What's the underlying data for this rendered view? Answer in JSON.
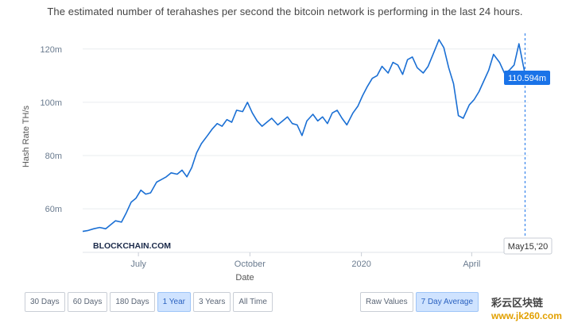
{
  "subtitle": "The estimated number of terahashes per second the bitcoin network is performing in the last 24 hours.",
  "watermark": {
    "brand": "BLOCKCHAIN.COM",
    "overlay": "彩云区块链",
    "site": "www.jk260.com"
  },
  "tooltip": {
    "value": "110.594m",
    "date": "May15,'20"
  },
  "range_buttons": [
    {
      "label": "30 Days",
      "active": false
    },
    {
      "label": "60 Days",
      "active": false
    },
    {
      "label": "180 Days",
      "active": false
    },
    {
      "label": "1 Year",
      "active": true
    },
    {
      "label": "3 Years",
      "active": false
    },
    {
      "label": "All Time",
      "active": false
    }
  ],
  "mode_buttons": [
    {
      "label": "Raw Values",
      "active": false
    },
    {
      "label": "7 Day Average",
      "active": true
    }
  ],
  "colors": {
    "line": "#1a6fd4",
    "grid": "#e9ecef",
    "tooltip_bg": "#1a73e8"
  },
  "chart_data": {
    "type": "line",
    "xlabel": "Date",
    "ylabel": "Hash Rate TH/s",
    "ylim": [
      49,
      125
    ],
    "yticks": [
      60,
      80,
      100,
      120
    ],
    "ytick_labels": [
      "60m",
      "80m",
      "100m",
      "120m"
    ],
    "xlim": [
      "2019-05-16",
      "2020-05-18"
    ],
    "xticks": [
      "2019-07-01",
      "2019-10-01",
      "2020-01-01",
      "2020-04-01"
    ],
    "xtick_labels": [
      "July",
      "October",
      "2020",
      "April"
    ],
    "grid": true,
    "series": [
      {
        "x": [
          "2019-05-16",
          "2019-05-20",
          "2019-05-25",
          "2019-05-30",
          "2019-06-04",
          "2019-06-08",
          "2019-06-12",
          "2019-06-17",
          "2019-06-21",
          "2019-06-25",
          "2019-06-29",
          "2019-07-03",
          "2019-07-07",
          "2019-07-11",
          "2019-07-16",
          "2019-07-20",
          "2019-07-24",
          "2019-07-28",
          "2019-08-02",
          "2019-08-06",
          "2019-08-10",
          "2019-08-14",
          "2019-08-18",
          "2019-08-22",
          "2019-08-27",
          "2019-08-31",
          "2019-09-04",
          "2019-09-08",
          "2019-09-12",
          "2019-09-16",
          "2019-09-20",
          "2019-09-25",
          "2019-09-29",
          "2019-10-03",
          "2019-10-07",
          "2019-10-11",
          "2019-10-15",
          "2019-10-19",
          "2019-10-24",
          "2019-10-28",
          "2019-11-01",
          "2019-11-05",
          "2019-11-09",
          "2019-11-13",
          "2019-11-17",
          "2019-11-22",
          "2019-11-26",
          "2019-11-30",
          "2019-12-04",
          "2019-12-08",
          "2019-12-12",
          "2019-12-16",
          "2019-12-20",
          "2019-12-25",
          "2019-12-29",
          "2020-01-02",
          "2020-01-06",
          "2020-01-10",
          "2020-01-14",
          "2020-01-18",
          "2020-01-23",
          "2020-01-27",
          "2020-01-31",
          "2020-02-04",
          "2020-02-08",
          "2020-02-12",
          "2020-02-16",
          "2020-02-21",
          "2020-02-25",
          "2020-03-01",
          "2020-03-05",
          "2020-03-09",
          "2020-03-13",
          "2020-03-17",
          "2020-03-21",
          "2020-03-25",
          "2020-03-30",
          "2020-04-03",
          "2020-04-07",
          "2020-04-11",
          "2020-04-15",
          "2020-04-19",
          "2020-04-24",
          "2020-04-28",
          "2020-05-02",
          "2020-05-06",
          "2020-05-10",
          "2020-05-15"
        ],
        "values": [
          51.5,
          51.8,
          52.5,
          53.0,
          52.5,
          54.0,
          55.5,
          55.0,
          58.5,
          62.5,
          64.0,
          67.0,
          65.5,
          66.0,
          70.0,
          71.0,
          72.0,
          73.5,
          73.0,
          74.5,
          72.0,
          75.5,
          81.0,
          84.5,
          87.5,
          90.0,
          92.0,
          91.0,
          93.5,
          92.5,
          97.0,
          96.5,
          100.0,
          96.0,
          93.0,
          91.0,
          92.5,
          94.0,
          91.5,
          93.0,
          94.5,
          92.0,
          91.5,
          87.5,
          93.0,
          95.5,
          93.0,
          94.5,
          92.0,
          96.0,
          97.0,
          94.0,
          91.5,
          96.0,
          98.5,
          102.5,
          106.0,
          109.0,
          110.0,
          113.5,
          111.0,
          115.0,
          114.0,
          110.5,
          116.0,
          117.0,
          113.0,
          111.0,
          113.5,
          119.0,
          123.5,
          120.5,
          113.0,
          107.0,
          95.0,
          94.0,
          99.0,
          101.0,
          104.0,
          108.0,
          112.0,
          118.0,
          115.0,
          111.0,
          112.0,
          114.0,
          122.0,
          110.594
        ]
      }
    ]
  }
}
